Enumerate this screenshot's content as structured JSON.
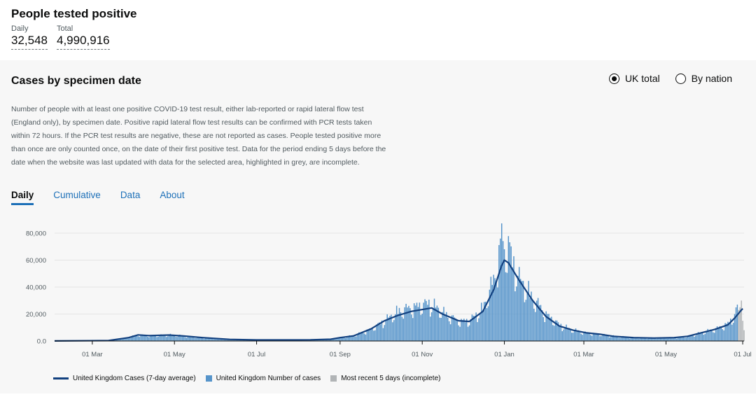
{
  "headline": {
    "title": "People tested positive",
    "daily_label": "Daily",
    "daily_value": "32,548",
    "total_label": "Total",
    "total_value": "4,990,916"
  },
  "panel": {
    "title": "Cases by specimen date",
    "radio_uk": "UK total",
    "radio_nation": "By nation",
    "selected": "UK total",
    "description": "Number of people with at least one positive COVID-19 test result, either lab-reported or rapid lateral flow test (England only), by specimen date. Positive rapid lateral flow test results can be confirmed with PCR tests taken within 72 hours. If the PCR test results are negative, these are not reported as cases. People tested positive more than once are only counted once, on the date of their first positive test. Data for the period ending 5 days before the date when the website was last updated with data for the selected area, highlighted in grey, are incomplete.",
    "tabs": [
      "Daily",
      "Cumulative",
      "Data",
      "About"
    ],
    "active_tab": "Daily"
  },
  "colors": {
    "bar": "#5694ca",
    "line": "#12407f",
    "incomplete": "#b1b4b6",
    "tab_link": "#1d70b8"
  },
  "chart_data": {
    "type": "bar",
    "title": "",
    "xlabel": "",
    "ylabel": "",
    "ylim": [
      0,
      80000
    ],
    "y_ticks": [
      0,
      20000,
      40000,
      60000,
      80000
    ],
    "y_tick_labels": [
      "0.0",
      "20,000",
      "40,000",
      "60,000",
      "80,000"
    ],
    "x_range_days": [
      0,
      512
    ],
    "x_ticks": [
      {
        "day": 28,
        "label": "01 Mar"
      },
      {
        "day": 89,
        "label": "01 May"
      },
      {
        "day": 150,
        "label": "01 Jul"
      },
      {
        "day": 212,
        "label": "01 Sep"
      },
      {
        "day": 273,
        "label": "01 Nov"
      },
      {
        "day": 334,
        "label": "01 Jan"
      },
      {
        "day": 393,
        "label": "01 Mar"
      },
      {
        "day": 454,
        "label": "01 May"
      },
      {
        "day": 515,
        "label": "01 Jul"
      }
    ],
    "series": [
      {
        "name": "United Kingdom Cases (7-day average)",
        "kind": "line",
        "points": [
          [
            0,
            50
          ],
          [
            40,
            300
          ],
          [
            55,
            2500
          ],
          [
            62,
            4500
          ],
          [
            70,
            4000
          ],
          [
            85,
            4400
          ],
          [
            95,
            3800
          ],
          [
            110,
            2500
          ],
          [
            130,
            1200
          ],
          [
            150,
            800
          ],
          [
            170,
            800
          ],
          [
            190,
            900
          ],
          [
            205,
            1300
          ],
          [
            212,
            2500
          ],
          [
            222,
            3800
          ],
          [
            235,
            9000
          ],
          [
            245,
            15000
          ],
          [
            255,
            19000
          ],
          [
            265,
            22000
          ],
          [
            280,
            24500
          ],
          [
            288,
            20000
          ],
          [
            300,
            15000
          ],
          [
            308,
            14500
          ],
          [
            318,
            22000
          ],
          [
            326,
            38000
          ],
          [
            332,
            56000
          ],
          [
            334,
            60000
          ],
          [
            337,
            58000
          ],
          [
            345,
            45000
          ],
          [
            355,
            30000
          ],
          [
            365,
            18000
          ],
          [
            375,
            11000
          ],
          [
            385,
            8000
          ],
          [
            395,
            6000
          ],
          [
            405,
            5000
          ],
          [
            415,
            3500
          ],
          [
            430,
            2500
          ],
          [
            445,
            2200
          ],
          [
            460,
            2500
          ],
          [
            470,
            3500
          ],
          [
            480,
            6000
          ],
          [
            490,
            8500
          ],
          [
            500,
            12000
          ],
          [
            505,
            17000
          ],
          [
            510,
            23000
          ],
          [
            511,
            24000
          ]
        ]
      },
      {
        "name": "United Kingdom Number of cases",
        "kind": "bar",
        "anchors": [
          [
            0,
            100
          ],
          [
            40,
            300
          ],
          [
            55,
            2500
          ],
          [
            62,
            4500
          ],
          [
            70,
            4000
          ],
          [
            85,
            4400
          ],
          [
            95,
            3800
          ],
          [
            110,
            2500
          ],
          [
            130,
            1200
          ],
          [
            150,
            800
          ],
          [
            170,
            800
          ],
          [
            190,
            900
          ],
          [
            205,
            1300
          ],
          [
            212,
            2500
          ],
          [
            222,
            3800
          ],
          [
            235,
            9000
          ],
          [
            245,
            15000
          ],
          [
            255,
            22000
          ],
          [
            265,
            25000
          ],
          [
            278,
            28000
          ],
          [
            285,
            24000
          ],
          [
            290,
            20000
          ],
          [
            300,
            15000
          ],
          [
            308,
            15000
          ],
          [
            318,
            24000
          ],
          [
            326,
            45000
          ],
          [
            331,
            70000
          ],
          [
            332,
            81000
          ],
          [
            334,
            65000
          ],
          [
            337,
            72000
          ],
          [
            340,
            60000
          ],
          [
            345,
            46000
          ],
          [
            355,
            32000
          ],
          [
            365,
            20000
          ],
          [
            375,
            12000
          ],
          [
            385,
            8000
          ],
          [
            395,
            6000
          ],
          [
            405,
            5000
          ],
          [
            415,
            3500
          ],
          [
            430,
            2500
          ],
          [
            445,
            2200
          ],
          [
            460,
            2500
          ],
          [
            470,
            3500
          ],
          [
            480,
            6000
          ],
          [
            490,
            8500
          ],
          [
            500,
            13000
          ],
          [
            505,
            19000
          ],
          [
            508,
            28000
          ]
        ]
      },
      {
        "name": "Most recent 5 days (incomplete)",
        "kind": "bar",
        "values": [
          [
            508,
            23000
          ],
          [
            509,
            25000
          ],
          [
            510,
            30000
          ],
          [
            511,
            15000
          ],
          [
            512,
            8000
          ]
        ]
      }
    ]
  }
}
